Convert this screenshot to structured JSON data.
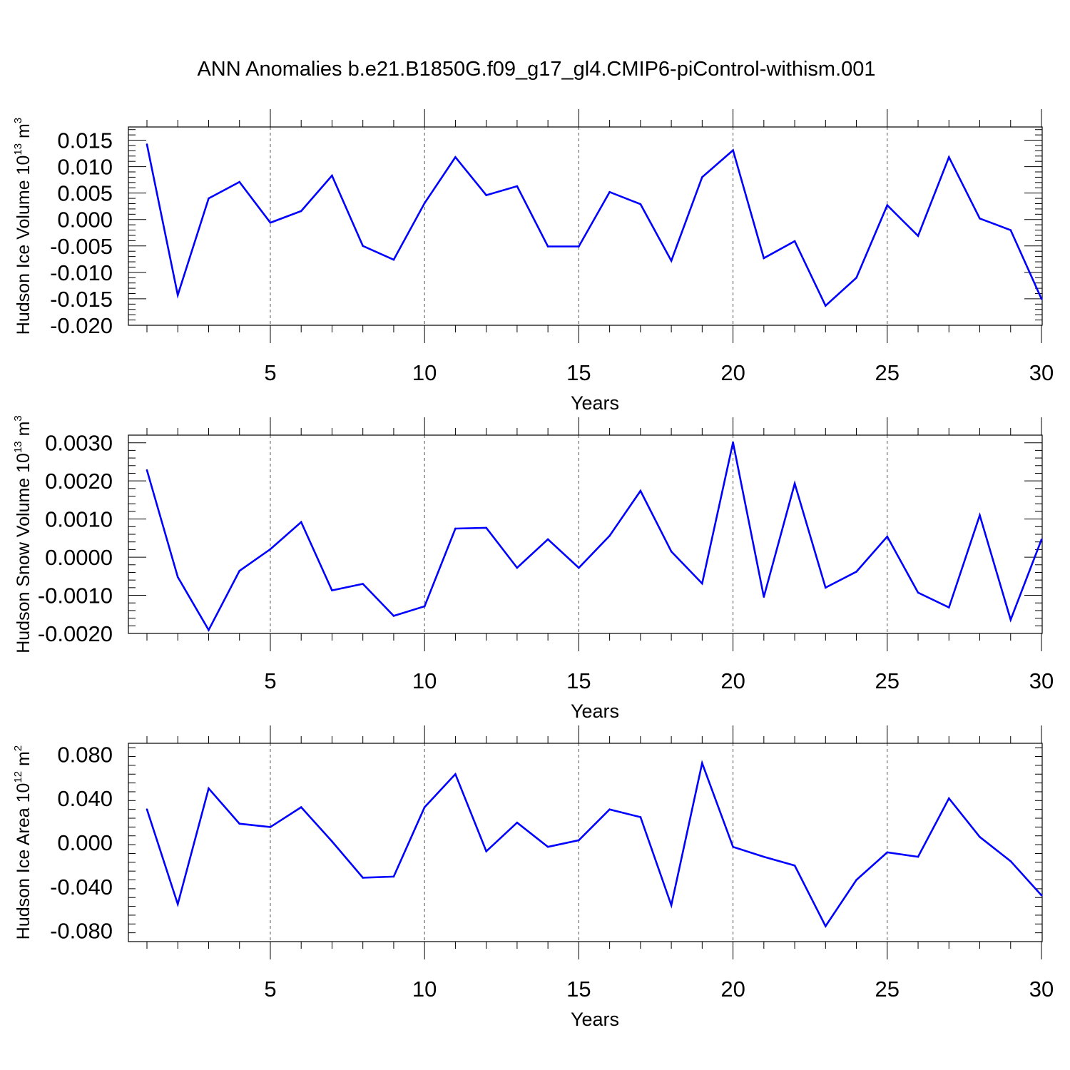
{
  "title": "ANN Anomalies b.e21.B1850G.f09_g17_gl4.CMIP6-piControl-withism.001",
  "line_color": "#0000ff",
  "chart_data": [
    {
      "type": "line",
      "xlabel": "Years",
      "ylabel": {
        "text": "Hudson Ice Volume 10",
        "sup": "13",
        "unit": " m",
        "unit_sup": "3"
      },
      "xlim": [
        1,
        30
      ],
      "ylim": [
        -0.02,
        0.0175
      ],
      "xticks": [
        5,
        10,
        15,
        20,
        25,
        30
      ],
      "yticks": [
        -0.02,
        -0.015,
        -0.01,
        -0.005,
        0.0,
        0.005,
        0.01,
        0.015
      ],
      "ytick_labels": [
        "-0.020",
        "-0.015",
        "-0.010",
        "-0.005",
        "0.000",
        "0.005",
        "0.010",
        "0.015"
      ],
      "grid": "dashed vertical at major x ticks",
      "x": [
        1,
        2,
        3,
        4,
        5,
        6,
        7,
        8,
        9,
        10,
        11,
        12,
        13,
        14,
        15,
        16,
        17,
        18,
        19,
        20,
        21,
        22,
        23,
        24,
        25,
        26,
        27,
        28,
        29,
        30
      ],
      "values": [
        0.0142,
        -0.0143,
        0.004,
        0.0071,
        -0.0006,
        0.0016,
        0.0083,
        -0.005,
        -0.0076,
        0.0031,
        0.0118,
        0.0046,
        0.0063,
        -0.0051,
        -0.0051,
        0.0052,
        0.0029,
        -0.0078,
        0.008,
        0.0131,
        -0.0073,
        -0.0041,
        -0.0163,
        -0.011,
        0.0027,
        -0.0031,
        0.0118,
        0.0002,
        -0.002,
        -0.015
      ]
    },
    {
      "type": "line",
      "xlabel": "Years",
      "ylabel": {
        "text": "Hudson Snow Volume 10",
        "sup": "13",
        "unit": " m",
        "unit_sup": "3"
      },
      "xlim": [
        1,
        30
      ],
      "ylim": [
        -0.002,
        0.0032
      ],
      "xticks": [
        5,
        10,
        15,
        20,
        25,
        30
      ],
      "yticks": [
        -0.002,
        -0.001,
        0.0,
        0.001,
        0.002,
        0.003
      ],
      "ytick_labels": [
        "-0.0020",
        "-0.0010",
        "0.0000",
        "0.0010",
        "0.0020",
        "0.0030"
      ],
      "grid": "dashed vertical at major x ticks",
      "x": [
        1,
        2,
        3,
        4,
        5,
        6,
        7,
        8,
        9,
        10,
        11,
        12,
        13,
        14,
        15,
        16,
        17,
        18,
        19,
        20,
        21,
        22,
        23,
        24,
        25,
        26,
        27,
        28,
        29,
        30
      ],
      "values": [
        0.00228,
        -0.00052,
        -0.00191,
        -0.00036,
        0.00021,
        0.00092,
        -0.00087,
        -0.0007,
        -0.00154,
        -0.00129,
        0.00075,
        0.00077,
        -0.00028,
        0.00047,
        -0.00028,
        0.00056,
        0.00174,
        0.00015,
        -0.00069,
        0.00301,
        -0.00104,
        0.00193,
        -0.0008,
        -0.00038,
        0.00054,
        -0.00093,
        -0.00132,
        0.0011,
        -0.00164,
        0.00046
      ]
    },
    {
      "type": "line",
      "xlabel": "Years",
      "ylabel": {
        "text": "Hudson Ice Area 10",
        "sup": "12",
        "unit": " m",
        "unit_sup": "2"
      },
      "xlim": [
        1,
        30
      ],
      "ylim": [
        -0.09,
        0.09
      ],
      "xticks": [
        5,
        10,
        15,
        20,
        25,
        30
      ],
      "yticks": [
        -0.08,
        -0.04,
        0.0,
        0.04,
        0.08
      ],
      "ytick_labels": [
        "-0.080",
        "-0.040",
        "0.000",
        "0.040",
        "0.080"
      ],
      "grid": "dashed vertical at major x ticks",
      "x": [
        1,
        2,
        3,
        4,
        5,
        6,
        7,
        8,
        9,
        10,
        11,
        12,
        13,
        14,
        15,
        16,
        17,
        18,
        19,
        20,
        21,
        22,
        23,
        24,
        25,
        26,
        27,
        28,
        29,
        30
      ],
      "values": [
        0.03,
        -0.056,
        0.049,
        0.017,
        0.014,
        0.032,
        0.001,
        -0.032,
        -0.031,
        0.032,
        0.062,
        -0.008,
        0.018,
        -0.004,
        0.002,
        0.03,
        0.023,
        -0.057,
        0.072,
        -0.004,
        -0.013,
        -0.021,
        -0.076,
        -0.034,
        -0.009,
        -0.013,
        0.04,
        0.005,
        -0.017,
        -0.048
      ]
    }
  ]
}
